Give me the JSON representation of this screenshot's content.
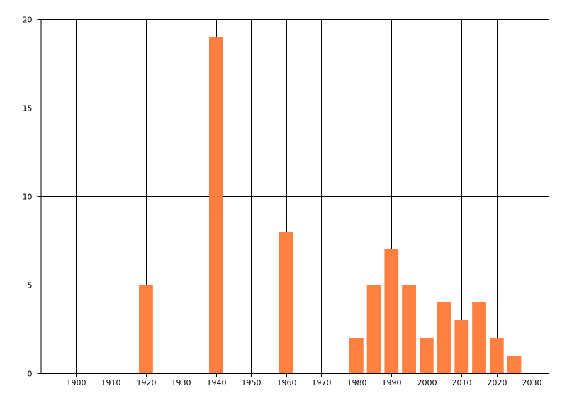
{
  "chart_data": {
    "type": "bar",
    "x": [
      1920,
      1940,
      1960,
      1980,
      1985,
      1990,
      1995,
      2000,
      2005,
      2010,
      2015,
      2020,
      2025
    ],
    "values": [
      5,
      19,
      8,
      2,
      5,
      7,
      5,
      2,
      4,
      3,
      4,
      2,
      1
    ],
    "color": "#ff8040",
    "xlim": [
      1890,
      2035
    ],
    "xticks": [
      1900,
      1910,
      1920,
      1930,
      1940,
      1950,
      1960,
      1970,
      1980,
      1990,
      2000,
      2010,
      2020,
      2030
    ],
    "ylim": [
      0,
      20
    ],
    "yticks": [
      0,
      5,
      10,
      15,
      20
    ],
    "grid": true
  }
}
